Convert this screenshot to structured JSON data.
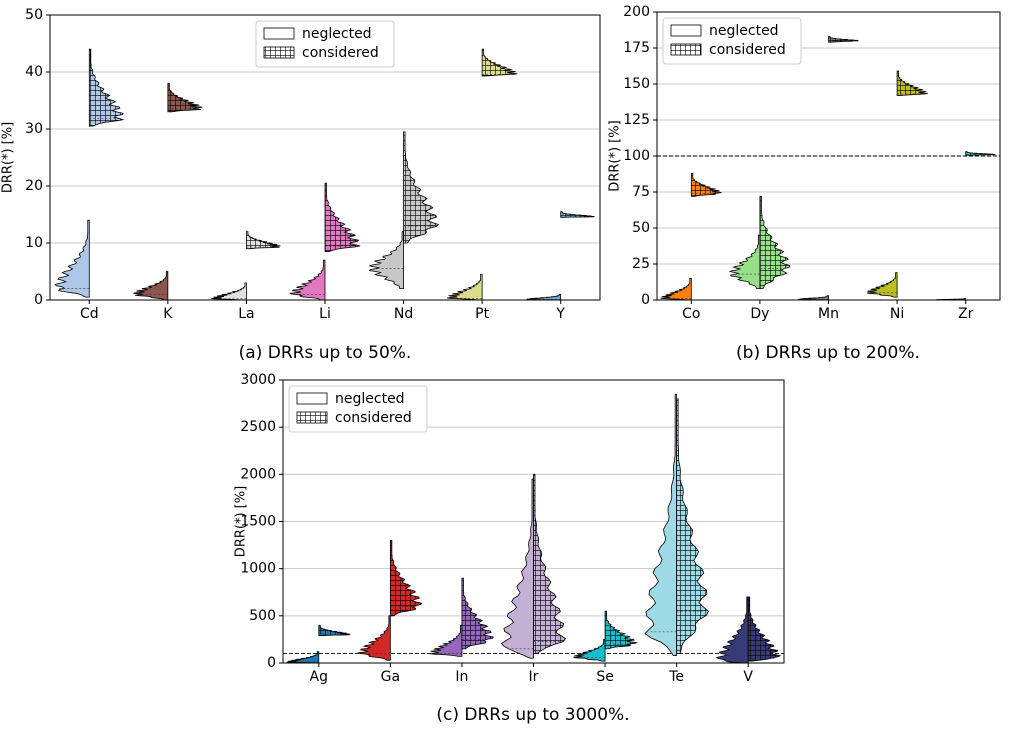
{
  "chart_data": [
    {
      "type": "violin",
      "caption": "(a) DRRs up to 50%.",
      "ylabel": "DRR(*) [%]",
      "categories": [
        "Cd",
        "K",
        "La",
        "Li",
        "Nd",
        "Pt",
        "Y"
      ],
      "colors": [
        "#aec7e8",
        "#8c564b",
        "#e0e0e0",
        "#e377c2",
        "#c7c7c7",
        "#dbdb8d",
        "#6baed6"
      ],
      "ylim": [
        0,
        50
      ],
      "yticks": [
        0,
        10,
        20,
        30,
        40,
        50
      ],
      "grid": true,
      "legend": "upper center",
      "series": [
        {
          "name": "neglected",
          "min": [
            0.5,
            0,
            0,
            0,
            2,
            0,
            0
          ],
          "median": [
            2,
            1,
            0.2,
            1,
            5.5,
            0.3,
            0.1
          ],
          "max": [
            14,
            5,
            3,
            7,
            12,
            4.5,
            1
          ]
        },
        {
          "name": "considered",
          "min": [
            30.5,
            33,
            9,
            8.5,
            10,
            39.3,
            14.5
          ],
          "median": [
            31.8,
            33.5,
            9.3,
            9.5,
            13,
            39.6,
            14.6
          ],
          "max": [
            44,
            38,
            12,
            20.5,
            29.5,
            44,
            15.5
          ]
        }
      ]
    },
    {
      "type": "violin",
      "caption": "(b) DRRs up to 200%.",
      "ylabel": "DRR(*) [%]",
      "categories": [
        "Co",
        "Dy",
        "Mn",
        "Ni",
        "Zr"
      ],
      "colors": [
        "#ff7f0e",
        "#98df8a",
        "#7f7f7f",
        "#bcbd22",
        "#17becf"
      ],
      "ylim": [
        0,
        200
      ],
      "yticks": [
        0,
        25,
        50,
        75,
        100,
        125,
        150,
        175,
        200
      ],
      "grid": true,
      "legend": "upper left",
      "reference_line": 100,
      "series": [
        {
          "name": "neglected",
          "min": [
            0,
            8,
            0,
            2,
            0
          ],
          "median": [
            1,
            18,
            0.5,
            5,
            0.2
          ],
          "max": [
            15,
            45,
            3,
            19,
            1
          ]
        },
        {
          "name": "considered",
          "min": [
            72,
            8,
            179,
            142,
            100.5
          ],
          "median": [
            74,
            22,
            180,
            143,
            101
          ],
          "max": [
            88,
            72,
            183,
            159,
            103
          ]
        }
      ]
    },
    {
      "type": "violin",
      "caption": "(c) DRRs up to 3000%.",
      "ylabel": "DRR(*) [%]",
      "categories": [
        "Ag",
        "Ga",
        "In",
        "Ir",
        "Se",
        "Te",
        "V"
      ],
      "colors": [
        "#1f77b4",
        "#d62728",
        "#9467bd",
        "#c5b0d5",
        "#17becf",
        "#9edae5",
        "#393b79"
      ],
      "ylim": [
        0,
        3000
      ],
      "yticks": [
        0,
        500,
        1000,
        1500,
        2000,
        2500,
        3000
      ],
      "grid": true,
      "legend": "upper left",
      "reference_line": 100,
      "series": [
        {
          "name": "neglected",
          "min": [
            0,
            30,
            70,
            50,
            20,
            80,
            0
          ],
          "median": [
            10,
            100,
            100,
            150,
            60,
            330,
            20
          ],
          "max": [
            120,
            500,
            400,
            1950,
            250,
            2850,
            700
          ]
        },
        {
          "name": "considered",
          "min": [
            290,
            500,
            150,
            100,
            150,
            100,
            20
          ],
          "median": [
            300,
            600,
            250,
            230,
            200,
            550,
            50
          ],
          "max": [
            400,
            1300,
            900,
            2000,
            550,
            2800,
            700
          ]
        }
      ]
    }
  ]
}
